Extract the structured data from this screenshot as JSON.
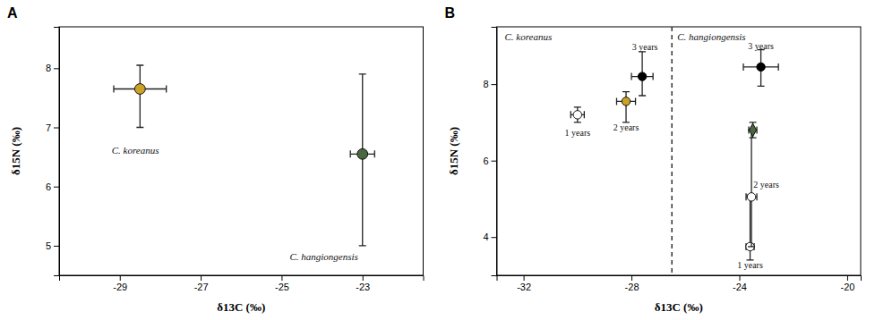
{
  "chart_data": [
    {
      "type": "scatter",
      "title": "A",
      "x_label": "δ13C (‰)",
      "y_label": "δ15N (‰)",
      "xlim": [
        -30.5,
        -21.5
      ],
      "ylim": [
        4.5,
        8.7
      ],
      "xticks": [
        -29,
        -27,
        -25,
        -23
      ],
      "yticks": [
        5,
        6,
        7,
        8
      ],
      "series": [
        {
          "color": "#C9A227",
          "marker": "circle",
          "x": [
            -28.5
          ],
          "values": [
            7.65
          ],
          "xerr": [
            0.65
          ],
          "yerr_lo": [
            0.65
          ],
          "yerr_hi": [
            0.4
          ]
        },
        {
          "color": "#4A6741",
          "marker": "circle",
          "x": [
            -23.0
          ],
          "values": [
            6.55
          ],
          "xerr": [
            0.3
          ],
          "yerr_lo": [
            1.55
          ],
          "yerr_hi": [
            1.35
          ]
        }
      ],
      "annotations": [
        {
          "text": "C. koreanus",
          "x": -29.2,
          "y": 6.55
        },
        {
          "text": "C. hangiongensis",
          "x": -24.8,
          "y": 4.75
        }
      ]
    },
    {
      "type": "scatter",
      "title": "B",
      "x_label": "δ13C (‰)",
      "y_label": "δ15N (‰)",
      "xlim": [
        -33,
        -19.5
      ],
      "ylim": [
        3.0,
        9.5
      ],
      "xticks": [
        -32,
        -28,
        -24,
        -20
      ],
      "yticks": [
        4,
        6,
        8
      ],
      "vline": -26.5,
      "series": [
        {
          "color": "white",
          "marker": "circle",
          "x": [
            -30.0
          ],
          "values": [
            7.2
          ],
          "xerr": [
            0.25
          ],
          "yerr_lo": [
            0.2
          ],
          "yerr_hi": [
            0.2
          ],
          "annotations": [
            {
              "text": "1 years",
              "x": -30.0,
              "y": 6.7
            }
          ]
        },
        {
          "color": "#C9A227",
          "marker": "circle",
          "x": [
            -28.2
          ],
          "values": [
            7.55
          ],
          "xerr": [
            0.35
          ],
          "yerr_lo": [
            0.55
          ],
          "yerr_hi": [
            0.25
          ],
          "annotations": [
            {
              "text": "2 years",
              "x": -28.2,
              "y": 6.85
            }
          ]
        },
        {
          "color": "black",
          "marker": "circle",
          "x": [
            -27.6
          ],
          "values": [
            8.2
          ],
          "xerr": [
            0.4
          ],
          "yerr_lo": [
            0.5
          ],
          "yerr_hi": [
            0.65
          ],
          "annotations": [
            {
              "text": "3 years",
              "x": -27.5,
              "y": 8.95
            }
          ]
        },
        {
          "color": "white",
          "marker": "circle",
          "x": [
            -23.6
          ],
          "values": [
            3.75
          ],
          "xerr": [
            0.15
          ],
          "yerr_lo": [
            0.35
          ],
          "yerr_hi": [
            1.35
          ],
          "annotations": [
            {
              "text": "1 years",
              "x": -23.6,
              "y": 3.25
            }
          ]
        },
        {
          "color": "white",
          "marker": "circle",
          "x": [
            -23.55
          ],
          "values": [
            5.05
          ],
          "xerr": [
            0.2
          ],
          "yerr_lo": [
            1.3
          ],
          "yerr_hi": [
            1.75
          ],
          "annotations": [
            {
              "text": "2 years",
              "x": -23.0,
              "y": 5.35
            }
          ]
        },
        {
          "color": "#4A6741",
          "marker": "diamond",
          "x": [
            -23.5
          ],
          "values": [
            6.8
          ],
          "xerr": [
            0.15
          ],
          "yerr_lo": [
            0.2
          ],
          "yerr_hi": [
            0.2
          ]
        },
        {
          "color": "black",
          "marker": "circle",
          "x": [
            -23.2
          ],
          "values": [
            8.45
          ],
          "xerr": [
            0.65
          ],
          "yerr_lo": [
            0.5
          ],
          "yerr_hi": [
            0.45
          ],
          "annotations": [
            {
              "text": "3 years",
              "x": -23.2,
              "y": 8.98
            }
          ]
        }
      ],
      "annotations": [
        {
          "text": "C. koreanus",
          "x": -32.7,
          "y": 9.35
        },
        {
          "text": "C. hangiongensis",
          "x": -26.3,
          "y": 9.35
        }
      ]
    }
  ]
}
